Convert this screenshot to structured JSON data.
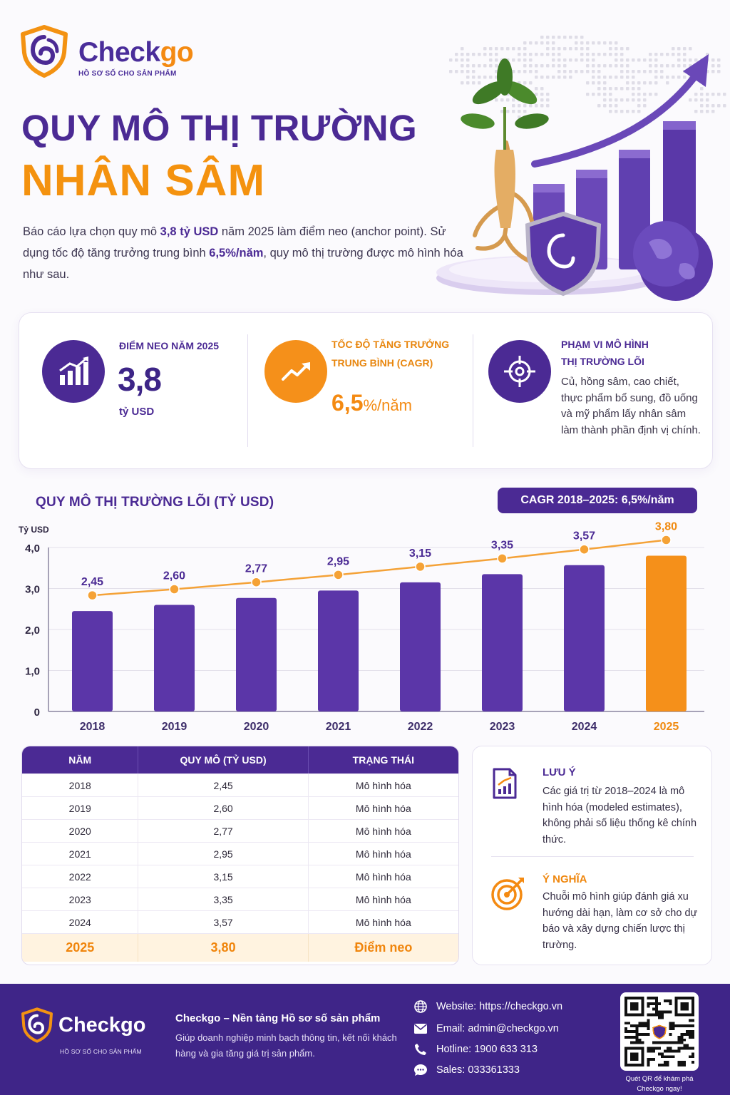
{
  "brand": {
    "name_part1": "Check",
    "name_part2": "go",
    "tagline": "HỒ SƠ SỐ CHO SẢN PHẨM"
  },
  "title_line1": "QUY MÔ THỊ TRƯỜNG",
  "title_line2": "NHÂN SÂM",
  "intro": {
    "t1": "Báo cáo lựa chọn quy mô ",
    "b1": "3,8 tỷ USD",
    "t2": " năm 2025 làm điểm neo (anchor point). Sử dụng tốc độ tăng trưởng trung bình ",
    "b2": "6,5%/năm",
    "t3": ", quy mô thị trường được mô hình hóa như sau."
  },
  "stats": {
    "anchor_label": "ĐIỂM NEO NĂM 2025",
    "anchor_value": "3,8",
    "anchor_unit": "tỷ USD",
    "cagr_label_1": "TỐC ĐỘ TĂNG TRƯỞNG",
    "cagr_label_2": "TRUNG BÌNH (CAGR)",
    "cagr_value": "6,5",
    "cagr_unit": "%/năm",
    "scope_label_1": "PHẠM VI MÔ HÌNH",
    "scope_label_2": "THỊ TRƯỜNG LÕI",
    "scope_text": "Củ, hồng sâm, cao chiết, thực phẩm bổ sung, đồ uống và mỹ phẩm lấy nhân sâm làm thành phần định vị chính."
  },
  "chart_data": {
    "type": "bar",
    "title": "QUY MÔ THỊ TRƯỜNG LÕI (TỶ USD)",
    "cagr_badge": "CAGR 2018–2025: 6,5%/năm",
    "ylabel": "Tỷ USD",
    "ylim": [
      0,
      4.0
    ],
    "yticks": [
      "0",
      "1,0",
      "2,0",
      "3,0",
      "4,0"
    ],
    "categories": [
      "2018",
      "2019",
      "2020",
      "2021",
      "2022",
      "2023",
      "2024",
      "2025"
    ],
    "values": [
      2.45,
      2.6,
      2.77,
      2.95,
      3.15,
      3.35,
      3.57,
      3.8
    ],
    "value_labels": [
      "2,45",
      "2,60",
      "2,77",
      "2,95",
      "3,15",
      "3,35",
      "3,57",
      "3,80"
    ],
    "trend_line": true,
    "bar_color": "#5b36a8",
    "highlight_color": "#f5901a",
    "highlight_index": 7
  },
  "table": {
    "headers": [
      "NĂM",
      "QUY MÔ (TỶ USD)",
      "TRẠNG THÁI"
    ],
    "rows": [
      [
        "2018",
        "2,45",
        "Mô hình hóa"
      ],
      [
        "2019",
        "2,60",
        "Mô hình hóa"
      ],
      [
        "2020",
        "2,77",
        "Mô hình hóa"
      ],
      [
        "2021",
        "2,95",
        "Mô hình hóa"
      ],
      [
        "2022",
        "3,15",
        "Mô hình hóa"
      ],
      [
        "2023",
        "3,35",
        "Mô hình hóa"
      ],
      [
        "2024",
        "3,57",
        "Mô hình hóa"
      ],
      [
        "2025",
        "3,80",
        "Điểm neo"
      ]
    ]
  },
  "notes": {
    "note_title": "LƯU Ý",
    "note_text": "Các giá trị từ 2018–2024 là mô hình hóa (modeled estimates), không phải số liệu thống kê chính thức.",
    "meaning_title": "Ý NGHĨA",
    "meaning_text": "Chuỗi mô hình giúp đánh giá xu hướng dài hạn, làm cơ sở cho dự báo và xây dựng chiến lược thị trường."
  },
  "footer": {
    "brand": "Checkgo",
    "tagline": "HỒ SƠ SỐ CHO SẢN PHẨM",
    "title": "Checkgo – Nền tảng Hồ sơ số sản phẩm",
    "desc": "Giúp doanh nghiệp minh bạch thông tin, kết nối khách hàng và gia tăng giá trị sản phẩm.",
    "website": "Website: https://checkgo.vn",
    "email": "Email: admin@checkgo.vn",
    "hotline": "Hotline: 1900 633 313",
    "sales": "Sales: 033361333",
    "qr_caption": "Quét QR để khám phá Checkgo ngay!"
  },
  "colors": {
    "purple": "#4b2a94",
    "orange": "#f48a12"
  }
}
